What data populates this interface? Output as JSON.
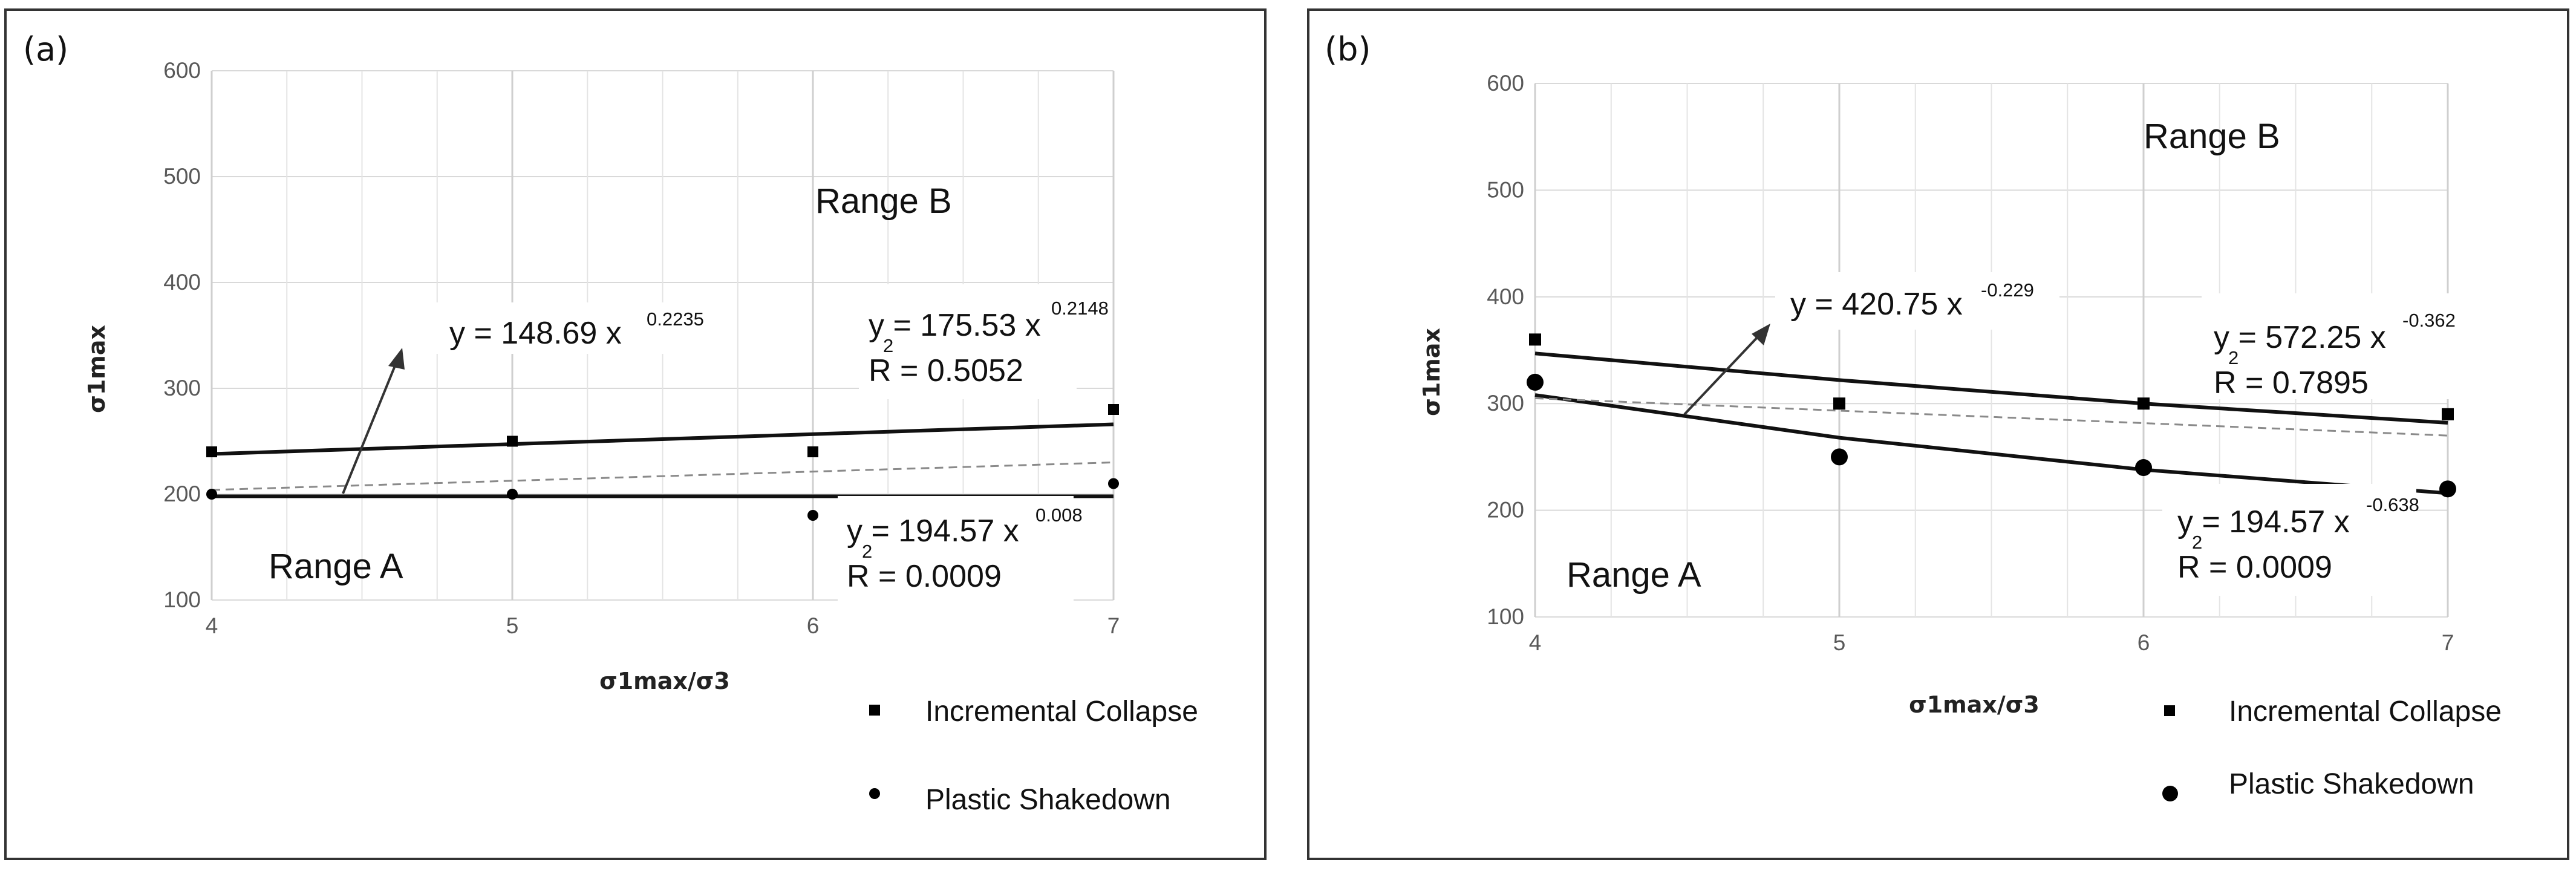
{
  "chart_data": [
    {
      "type": "scatter",
      "panel_label": "(a)",
      "xlabel": "σ1max/σ3",
      "ylabel": "σ1max",
      "xlim": [
        4,
        7
      ],
      "ylim": [
        100,
        600
      ],
      "xticks": [
        "4",
        "5",
        "6",
        "7"
      ],
      "yticks": [
        "100",
        "200",
        "300",
        "400",
        "500",
        "600"
      ],
      "grid": true,
      "series": [
        {
          "name": "Incremental Collapse",
          "marker": "square",
          "x": [
            4,
            5,
            6,
            7
          ],
          "y": [
            240,
            250,
            240,
            280
          ]
        },
        {
          "name": "Plastic Shakedown",
          "marker": "circle",
          "x": [
            4,
            5,
            6,
            7
          ],
          "y": [
            200,
            200,
            180,
            210
          ]
        }
      ],
      "fits": [
        {
          "name": "Incremental Collapse trend",
          "style": "solid",
          "x": [
            4,
            7
          ],
          "y": [
            238,
            266
          ]
        },
        {
          "name": "Plastic Shakedown trend",
          "style": "solid",
          "x": [
            4,
            7
          ],
          "y": [
            198,
            198
          ]
        },
        {
          "name": "boundary",
          "style": "dashed",
          "x": [
            4,
            7
          ],
          "y": [
            204,
            230
          ]
        }
      ],
      "annotations": [
        {
          "base": "y = 148.69 x",
          "sup": "0.2235"
        },
        {
          "base": "y = 175.53 x",
          "sup": "0.2148",
          "sub": "2",
          "r2": "R = 0.5052"
        },
        {
          "base": "y = 194.57 x",
          "sup": "0.008",
          "sub": "2",
          "r2": "R = 0.0009"
        }
      ],
      "regions": [
        "Range A",
        "Range B"
      ]
    },
    {
      "type": "scatter",
      "panel_label": "(b)",
      "xlabel": "σ1max/σ3",
      "ylabel": "σ1max",
      "xlim": [
        4,
        7
      ],
      "ylim": [
        100,
        600
      ],
      "xticks": [
        "4",
        "5",
        "6",
        "7"
      ],
      "yticks": [
        "100",
        "200",
        "300",
        "400",
        "500",
        "600"
      ],
      "grid": true,
      "series": [
        {
          "name": "Incremental Collapse",
          "marker": "square",
          "x": [
            4,
            5,
            6,
            7
          ],
          "y": [
            360,
            300,
            300,
            290
          ]
        },
        {
          "name": "Plastic Shakedown",
          "marker": "circle",
          "x": [
            4,
            5,
            6,
            7
          ],
          "y": [
            320,
            250,
            240,
            220
          ]
        }
      ],
      "fits": [
        {
          "name": "Incremental Collapse trend",
          "style": "solid",
          "x": [
            4,
            5,
            6,
            7
          ],
          "y": [
            347,
            322,
            300,
            282
          ]
        },
        {
          "name": "Plastic Shakedown trend",
          "style": "solid",
          "x": [
            4,
            5,
            6,
            7
          ],
          "y": [
            308,
            268,
            238,
            216
          ]
        },
        {
          "name": "boundary",
          "style": "dashed",
          "x": [
            4,
            7
          ],
          "y": [
            305,
            270
          ]
        }
      ],
      "annotations": [
        {
          "base": "y = 420.75 x",
          "sup": "-0.229"
        },
        {
          "base": "y = 572.25 x",
          "sup": "-0.362",
          "sub": "2",
          "r2": "R = 0.7895"
        },
        {
          "base": "y = 194.57 x",
          "sup": "-0.638",
          "sub": "2",
          "r2": "R = 0.0009"
        }
      ],
      "regions": [
        "Range A",
        "Range B"
      ]
    }
  ]
}
